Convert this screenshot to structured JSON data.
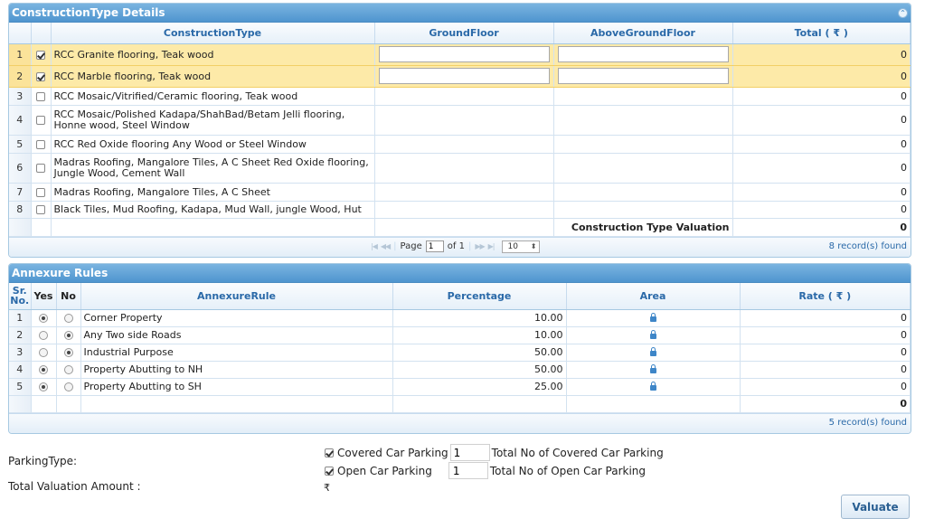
{
  "construction": {
    "title": "ConstructionType Details",
    "columns": {
      "type": "ConstructionType",
      "ground": "GroundFloor",
      "above": "AboveGroundFloor",
      "total": "Total ( ₹ )"
    },
    "rows": [
      {
        "n": "1",
        "checked": true,
        "type": "RCC Granite flooring, Teak wood",
        "total": "0"
      },
      {
        "n": "2",
        "checked": true,
        "type": "RCC Marble flooring, Teak wood",
        "total": "0"
      },
      {
        "n": "3",
        "checked": false,
        "type": "RCC Mosaic/Vitrified/Ceramic flooring, Teak wood",
        "total": "0"
      },
      {
        "n": "4",
        "checked": false,
        "type": "RCC Mosaic/Polished Kadapa/ShahBad/Betam Jelli flooring, Honne wood, Steel Window",
        "total": "0"
      },
      {
        "n": "5",
        "checked": false,
        "type": "RCC Red Oxide flooring Any Wood or Steel Window",
        "total": "0"
      },
      {
        "n": "6",
        "checked": false,
        "type": "Madras Roofing, Mangalore Tiles, A C Sheet Red Oxide flooring, Jungle Wood, Cement Wall",
        "total": "0"
      },
      {
        "n": "7",
        "checked": false,
        "type": "Madras Roofing, Mangalore Tiles, A C Sheet",
        "total": "0"
      },
      {
        "n": "8",
        "checked": false,
        "type": "Black Tiles, Mud Roofing, Kadapa, Mud Wall, jungle Wood, Hut",
        "total": "0"
      }
    ],
    "summary_label": "Construction Type Valuation",
    "summary_value": "0",
    "pager": {
      "page_label": "Page",
      "page_value": "1",
      "of_label": "of 1",
      "page_size": "10",
      "records": "8 record(s) found"
    }
  },
  "annexure": {
    "title": "Annexure Rules",
    "columns": {
      "sr": "Sr. No.",
      "yes": "Yes",
      "no": "No",
      "rule": "AnnexureRule",
      "pct": "Percentage",
      "area": "Area",
      "rate": "Rate ( ₹ )"
    },
    "rows": [
      {
        "n": "1",
        "yes": true,
        "rule": "Corner Property",
        "pct": "10.00",
        "rate": "0"
      },
      {
        "n": "2",
        "yes": false,
        "rule": "Any Two side Roads",
        "pct": "10.00",
        "rate": "0"
      },
      {
        "n": "3",
        "yes": false,
        "rule": "Industrial Purpose",
        "pct": "50.00",
        "rate": "0"
      },
      {
        "n": "4",
        "yes": true,
        "rule": "Property Abutting to NH",
        "pct": "50.00",
        "rate": "0"
      },
      {
        "n": "5",
        "yes": true,
        "rule": "Property Abutting to SH",
        "pct": "25.00",
        "rate": "0"
      }
    ],
    "summary_value": "0",
    "records": "5 record(s) found"
  },
  "parking": {
    "label": "ParkingType:",
    "covered_label": "Covered Car Parking",
    "covered_value": "1",
    "covered_total_label": "Total No of Covered Car Parking",
    "open_label": "Open Car Parking",
    "open_value": "1",
    "open_total_label": "Total No of Open Car Parking"
  },
  "total_valuation_label": "Total Valuation Amount :",
  "total_valuation_value": "₹",
  "valuate_label": "Valuate"
}
